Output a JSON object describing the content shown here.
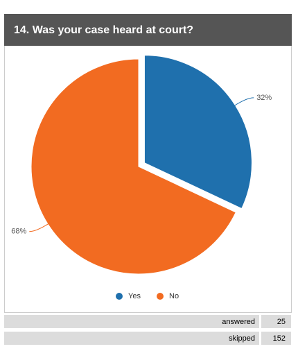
{
  "chart_data": {
    "type": "pie",
    "title": "14. Was your case heard at court?",
    "categories": [
      "Yes",
      "No"
    ],
    "values": [
      32,
      68
    ],
    "value_labels": [
      "32%",
      "68%"
    ],
    "colors": [
      "#1f70ad",
      "#f26b21"
    ]
  },
  "summary": {
    "rows": [
      [
        "answered",
        25
      ],
      [
        "skipped",
        152
      ]
    ]
  }
}
